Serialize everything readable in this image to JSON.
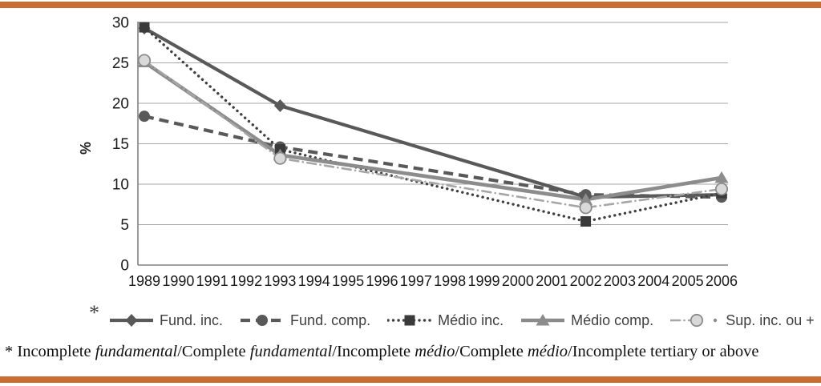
{
  "accent_color": "#C96E31",
  "chart_data": {
    "type": "line",
    "title": "",
    "ylabel": "%",
    "xlabel": "",
    "ylim": [
      0,
      30
    ],
    "yticks": [
      0,
      5,
      10,
      15,
      20,
      25,
      30
    ],
    "grid": true,
    "legend_position": "bottom",
    "x_axis_years": [
      "1989",
      "1990",
      "1991",
      "1992",
      "1993",
      "1994",
      "1995",
      "1996",
      "1997",
      "1998",
      "1999",
      "2000",
      "2001",
      "2002",
      "2003",
      "2004",
      "2005",
      "2006"
    ],
    "data_years": [
      1989,
      1993,
      2002,
      2006
    ],
    "series": [
      {
        "name": "Fund. inc.",
        "marker": "diamond",
        "line_style": "solid",
        "color": "#595959",
        "values": [
          29.3,
          19.7,
          8.4,
          8.7
        ]
      },
      {
        "name": "Fund. comp.",
        "marker": "circle",
        "line_style": "dashed",
        "color": "#595959",
        "values": [
          18.4,
          14.6,
          8.7,
          8.4
        ]
      },
      {
        "name": "Médio inc.",
        "marker": "square",
        "line_style": "dotted",
        "color": "#3F3F3F",
        "values": [
          29.4,
          14.3,
          5.4,
          8.9
        ]
      },
      {
        "name": "Médio comp.",
        "marker": "triangle",
        "line_style": "solid",
        "color": "#8C8C8C",
        "values": [
          25.1,
          13.6,
          8.1,
          10.8
        ]
      },
      {
        "name": "Sup. inc. ou +",
        "marker": "circle-light",
        "line_style": "dash-dot",
        "color": "#A6A6A6",
        "marker_fill": "#D9D9D9",
        "values": [
          25.3,
          13.2,
          7.1,
          9.4
        ]
      }
    ]
  },
  "legend": {
    "note_marker": "*"
  },
  "footnote": {
    "parts": [
      {
        "text": "* Incomplete ",
        "italic": false
      },
      {
        "text": "fundamental",
        "italic": true
      },
      {
        "text": "/Complete ",
        "italic": false
      },
      {
        "text": "fundamental",
        "italic": true
      },
      {
        "text": "/Incomplete ",
        "italic": false
      },
      {
        "text": "médio",
        "italic": true
      },
      {
        "text": "/Complete ",
        "italic": false
      },
      {
        "text": "médio",
        "italic": true
      },
      {
        "text": "/Incomplete tertiary or above",
        "italic": false
      }
    ]
  },
  "colors": {
    "gridline": "#A6A6A6",
    "axis": "#808080",
    "tick_text": "#1a1a1a",
    "square_marker": "#3A3A3A",
    "light_fill": "#D9D9D9"
  }
}
